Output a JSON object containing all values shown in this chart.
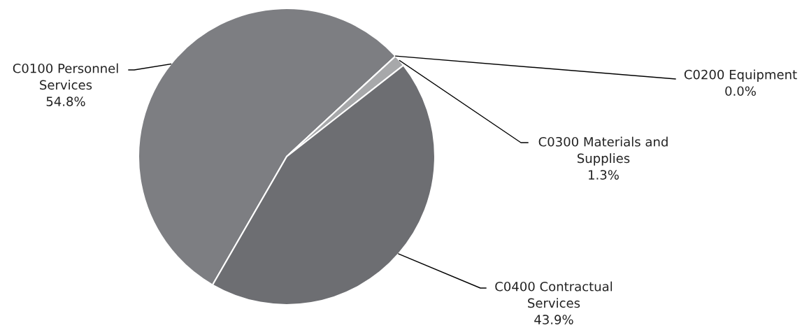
{
  "chart_data": {
    "type": "pie",
    "categories": [
      "C0100 Personnel Services",
      "C0200 Equipment",
      "C0300 Materials and Supplies",
      "C0400 Contractual Services"
    ],
    "values": [
      54.8,
      0.0,
      1.3,
      43.9
    ],
    "colors": [
      "#7d7e82",
      "#5a5b5f",
      "#a7a8aa",
      "#6d6e72"
    ],
    "value_labels": [
      "54.8%",
      "0.0%",
      "1.3%",
      "43.9%"
    ],
    "legend": false
  }
}
